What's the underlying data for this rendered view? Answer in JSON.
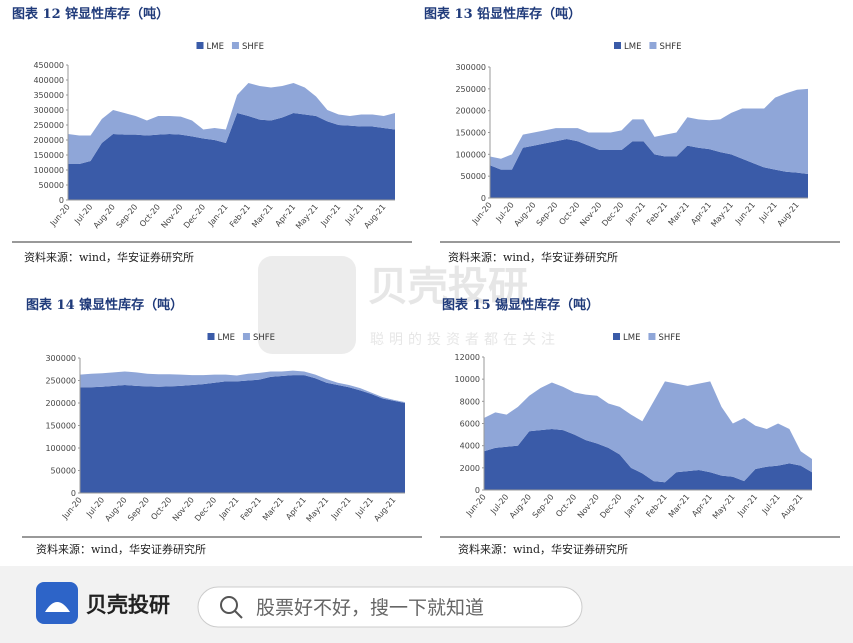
{
  "chart_data": [
    {
      "type": "stacked-area",
      "title": "图表 12 锌显性库存（吨）",
      "categories": [
        "Jun-20",
        null,
        "Jul-20",
        null,
        "Aug-20",
        null,
        "Sep-20",
        null,
        "Oct-20",
        null,
        "Nov-20",
        null,
        "Dec-20",
        null,
        "Jan-21",
        null,
        "Feb-21",
        null,
        "Mar-21",
        null,
        "Apr-21",
        null,
        "May-21",
        null,
        "Jun-21",
        null,
        "Jul-21",
        null,
        "Aug-21",
        null
      ],
      "series": [
        {
          "name": "LME",
          "color": "#3a5ba8",
          "values": [
            120000,
            120000,
            130000,
            190000,
            220000,
            218000,
            218000,
            215000,
            218000,
            220000,
            218000,
            212000,
            205000,
            200000,
            190000,
            290000,
            280000,
            268000,
            265000,
            275000,
            290000,
            285000,
            280000,
            262000,
            250000,
            248000,
            245000,
            245000,
            240000,
            235000
          ]
        },
        {
          "name": "SHFE",
          "color": "#8fa6d8",
          "values": [
            100000,
            95000,
            85000,
            80000,
            80000,
            72000,
            62000,
            50000,
            62000,
            60000,
            60000,
            53000,
            30000,
            40000,
            45000,
            60000,
            110000,
            112000,
            110000,
            105000,
            100000,
            90000,
            65000,
            38000,
            35000,
            32000,
            40000,
            40000,
            40000,
            55000
          ]
        }
      ],
      "ylim": [
        0,
        450000
      ],
      "yticks": [
        0,
        50000,
        100000,
        150000,
        200000,
        250000,
        300000,
        350000,
        400000,
        450000
      ]
    },
    {
      "type": "stacked-area",
      "title": "图表 13 铅显性库存（吨）",
      "categories": [
        "Jun-20",
        null,
        "Jul-20",
        null,
        "Aug-20",
        null,
        "Sep-20",
        null,
        "Oct-20",
        null,
        "Nov-20",
        null,
        "Dec-20",
        null,
        "Jan-21",
        null,
        "Feb-21",
        null,
        "Mar-21",
        null,
        "Apr-21",
        null,
        "May-21",
        null,
        "Jun-21",
        null,
        "Jul-21",
        null,
        "Aug-21",
        null
      ],
      "series": [
        {
          "name": "LME",
          "color": "#3a5ba8",
          "values": [
            75000,
            65000,
            65000,
            115000,
            120000,
            125000,
            130000,
            135000,
            130000,
            120000,
            110000,
            110000,
            110000,
            130000,
            130000,
            100000,
            95000,
            95000,
            120000,
            115000,
            112000,
            105000,
            100000,
            90000,
            80000,
            70000,
            65000,
            60000,
            58000,
            55000
          ]
        },
        {
          "name": "SHFE",
          "color": "#8fa6d8",
          "values": [
            20000,
            25000,
            35000,
            30000,
            30000,
            30000,
            30000,
            25000,
            30000,
            30000,
            40000,
            40000,
            45000,
            50000,
            50000,
            40000,
            50000,
            55000,
            65000,
            65000,
            66000,
            75000,
            95000,
            115000,
            125000,
            135000,
            165000,
            180000,
            190000,
            195000
          ]
        }
      ],
      "ylim": [
        0,
        300000
      ],
      "yticks": [
        0,
        50000,
        100000,
        150000,
        200000,
        250000,
        300000
      ]
    },
    {
      "type": "stacked-area",
      "title": "图表 14 镍显性库存（吨）",
      "categories": [
        "Jun-20",
        null,
        "Jul-20",
        null,
        "Aug-20",
        null,
        "Sep-20",
        null,
        "Oct-20",
        null,
        "Nov-20",
        null,
        "Dec-20",
        null,
        "Jan-21",
        null,
        "Feb-21",
        null,
        "Mar-21",
        null,
        "Apr-21",
        null,
        "May-21",
        null,
        "Jun-21",
        null,
        "Jul-21",
        null,
        "Aug-21",
        null
      ],
      "series": [
        {
          "name": "LME",
          "color": "#3a5ba8",
          "values": [
            235000,
            235000,
            236000,
            238000,
            240000,
            238000,
            237000,
            236000,
            237000,
            238000,
            240000,
            242000,
            245000,
            248000,
            248000,
            250000,
            252000,
            258000,
            260000,
            262000,
            262000,
            255000,
            245000,
            240000,
            235000,
            228000,
            220000,
            210000,
            205000,
            200000
          ]
        },
        {
          "name": "SHFE",
          "color": "#8fa6d8",
          "values": [
            28000,
            30000,
            30000,
            30000,
            30000,
            30000,
            28000,
            28000,
            27000,
            25000,
            22000,
            20000,
            18000,
            15000,
            13000,
            15000,
            15000,
            12000,
            10000,
            10000,
            8000,
            8000,
            8000,
            5000,
            5000,
            5000,
            3000,
            3000,
            2000,
            2000
          ]
        }
      ],
      "ylim": [
        0,
        300000
      ],
      "yticks": [
        0,
        50000,
        100000,
        150000,
        200000,
        250000,
        300000
      ]
    },
    {
      "type": "stacked-area",
      "title": "图表 15 锡显性库存（吨）",
      "categories": [
        "Jun-20",
        null,
        "Jul-20",
        null,
        "Aug-20",
        null,
        "Sep-20",
        null,
        "Oct-20",
        null,
        "Nov-20",
        null,
        "Dec-20",
        null,
        "Jan-21",
        null,
        "Feb-21",
        null,
        "Mar-21",
        null,
        "Apr-21",
        null,
        "May-21",
        null,
        "Jun-21",
        null,
        "Jul-21",
        null,
        "Aug-21",
        null
      ],
      "series": [
        {
          "name": "LME",
          "color": "#3a5ba8",
          "values": [
            3500,
            3800,
            3900,
            4000,
            5300,
            5400,
            5500,
            5400,
            5000,
            4500,
            4200,
            3800,
            3200,
            2000,
            1500,
            800,
            700,
            1600,
            1700,
            1800,
            1600,
            1300,
            1200,
            800,
            1900,
            2100,
            2200,
            2400,
            2200,
            1600
          ]
        },
        {
          "name": "SHFE",
          "color": "#8fa6d8",
          "values": [
            3000,
            3200,
            2900,
            3500,
            3200,
            3800,
            4200,
            3900,
            3800,
            4100,
            4300,
            4000,
            4300,
            4800,
            4700,
            7200,
            9100,
            8000,
            7700,
            7800,
            8200,
            6200,
            4800,
            5700,
            3900,
            3400,
            3800,
            3100,
            1300,
            1200
          ]
        }
      ],
      "ylim": [
        0,
        12000
      ],
      "yticks": [
        0,
        2000,
        4000,
        6000,
        8000,
        10000,
        12000
      ]
    }
  ],
  "sources": [
    "资料来源：wind，华安证券研究所",
    "资料来源：wind，华安证券研究所",
    "资料来源：wind，华安证券研究所",
    "资料来源：wind，华安证券研究所"
  ],
  "watermark": {
    "brand": "贝壳投研",
    "slogan": "聪明的投资者都在关注"
  },
  "footer": {
    "brand": "贝壳投研",
    "search": "股票好不好，搜一下就知道"
  }
}
